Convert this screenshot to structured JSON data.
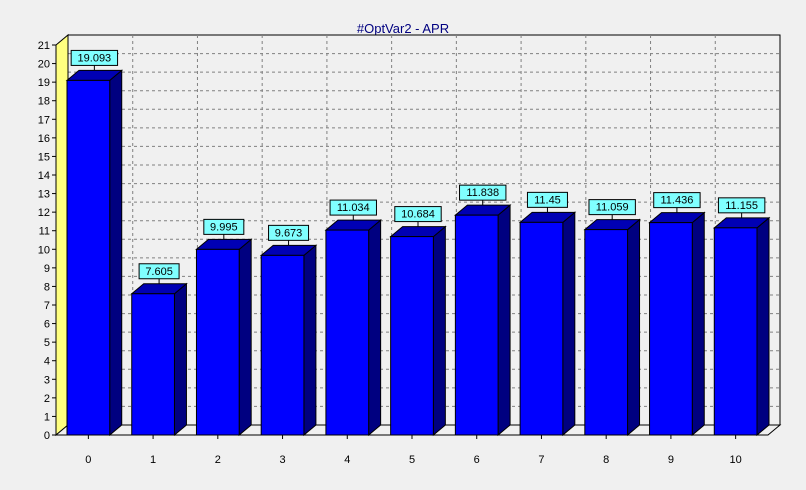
{
  "chart_data": {
    "type": "bar",
    "title": "#OptVar2 - APR",
    "xlabel": "",
    "ylabel": "",
    "categories": [
      "0",
      "1",
      "2",
      "3",
      "4",
      "5",
      "6",
      "7",
      "8",
      "9",
      "10"
    ],
    "values": [
      19.093,
      7.605,
      9.995,
      9.673,
      11.034,
      10.684,
      11.838,
      11.45,
      11.059,
      11.436,
      11.155
    ],
    "value_labels": [
      "19.093",
      "7.605",
      "9.995",
      "9.673",
      "11.034",
      "10.684",
      "11.838",
      "11.45",
      "11.059",
      "11.436",
      "11.155"
    ],
    "ylim": [
      0,
      21
    ],
    "yticks": [
      0,
      1,
      2,
      3,
      4,
      5,
      6,
      7,
      8,
      9,
      10,
      11,
      12,
      13,
      14,
      15,
      16,
      17,
      18,
      19,
      20,
      21
    ],
    "grid": true,
    "style": "3d",
    "colors": {
      "bar_front": "#0000ff",
      "bar_top": "#0000b4",
      "bar_side": "#000080",
      "label_bg": "#80ffff",
      "title": "#000080",
      "axis_wall": "#ffff80",
      "background": "#f0f0f0"
    }
  }
}
